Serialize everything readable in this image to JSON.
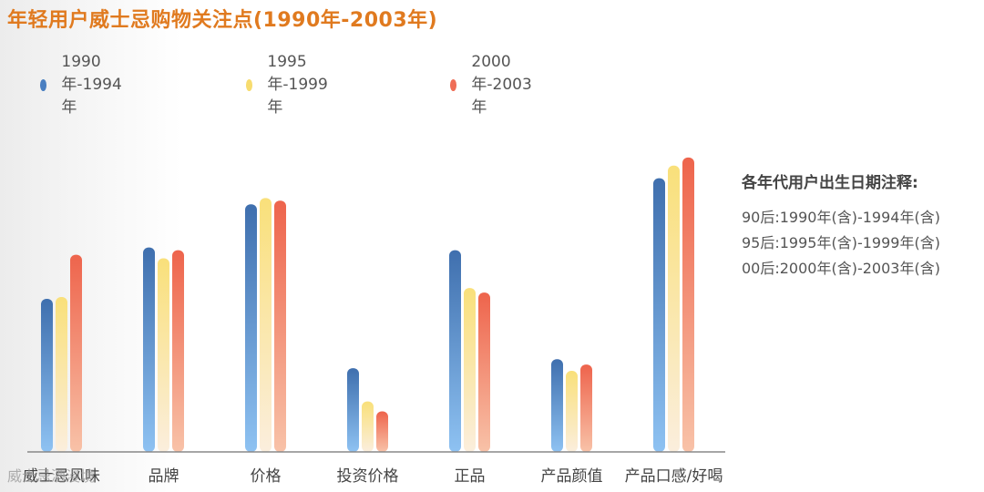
{
  "chart_data": {
    "type": "bar",
    "title": "年轻用户威士忌购物关注点(1990年-2003年)",
    "categories": [
      "威士忌风味",
      "品牌",
      "价格",
      "投资价格",
      "正品",
      "产品颜值",
      "产品口感/好喝"
    ],
    "series": [
      {
        "name": "1990年-1994年",
        "color": "#4a7fc1",
        "values": [
          170,
          227,
          275,
          93,
          224,
          103,
          304
        ]
      },
      {
        "name": "1995年-1999年",
        "color": "#f7dc6f",
        "values": [
          172,
          215,
          282,
          56,
          182,
          90,
          318
        ]
      },
      {
        "name": "2000年-2003年",
        "color": "#ef6e57",
        "values": [
          219,
          224,
          279,
          45,
          177,
          97,
          327
        ]
      }
    ],
    "ylim": [
      0,
      340
    ],
    "grid": false,
    "legend_position": "top-left"
  },
  "note": {
    "title": "各年代用户出生日期注释:",
    "lines": [
      "90后:1990年(含)-1994年(含)",
      "95后:1995年(含)-1999年(含)",
      "00后:2000年(含)-2003年(含)"
    ]
  },
  "watermark": "威士忌酒漫境"
}
